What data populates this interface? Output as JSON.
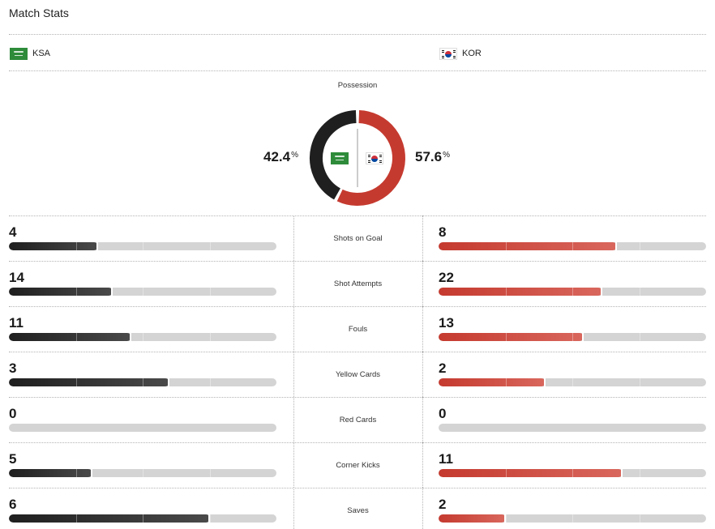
{
  "title": "Match Stats",
  "teams": {
    "home": {
      "abbr": "KSA",
      "flag_icon": "saudi-arabia-flag-icon",
      "color": "#1f1f1f"
    },
    "away": {
      "abbr": "KOR",
      "flag_icon": "south-korea-flag-icon",
      "color": "#c53a2f"
    }
  },
  "possession": {
    "label": "Possession",
    "home": 42.4,
    "away": 57.6,
    "home_text": "42.4",
    "away_text": "57.6",
    "unit": "%"
  },
  "stats": [
    {
      "label": "Shots on Goal",
      "home": "4",
      "away": "8"
    },
    {
      "label": "Shot Attempts",
      "home": "14",
      "away": "22"
    },
    {
      "label": "Fouls",
      "home": "11",
      "away": "13"
    },
    {
      "label": "Yellow Cards",
      "home": "3",
      "away": "2"
    },
    {
      "label": "Red Cards",
      "home": "0",
      "away": "0"
    },
    {
      "label": "Corner Kicks",
      "home": "5",
      "away": "11"
    },
    {
      "label": "Saves",
      "home": "6",
      "away": "2"
    }
  ],
  "colors": {
    "track": "#d4d4d4",
    "home_bar": "#1f1f1f",
    "away_bar": "#c53a2f"
  }
}
